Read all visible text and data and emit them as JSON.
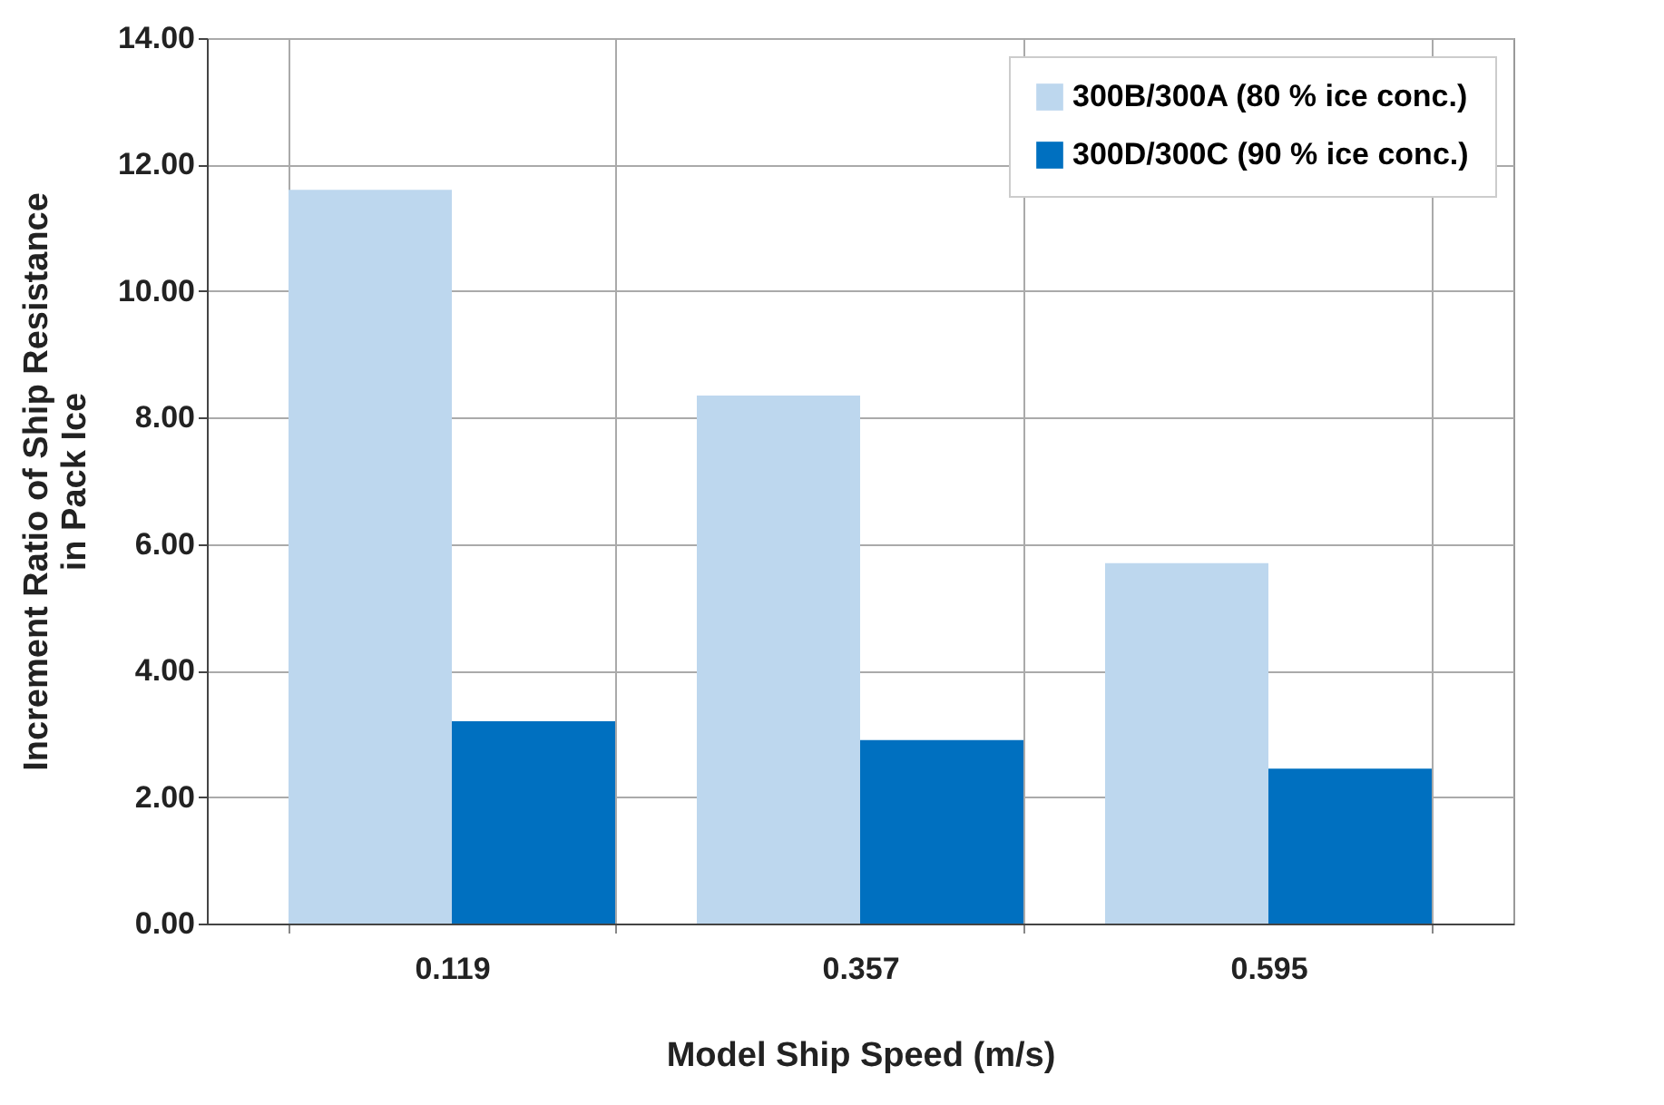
{
  "chart_data": {
    "type": "bar",
    "xlabel": "Model Ship Speed (m/s)",
    "ylabel": "Increment Ratio of Ship Resistance\nin Pack Ice",
    "categories": [
      "0.119",
      "0.357",
      "0.595"
    ],
    "series": [
      {
        "name": "300B/300A (80 % ice conc.)",
        "color": "#bdd7ee",
        "values": [
          11.6,
          8.35,
          5.7
        ]
      },
      {
        "name": "300D/300C (90 % ice conc.)",
        "color": "#0070c0",
        "values": [
          3.2,
          2.9,
          2.45
        ]
      }
    ],
    "ylim": [
      0,
      14
    ],
    "yticks": [
      {
        "value": 0,
        "label": "0.00"
      },
      {
        "value": 2,
        "label": "2.00"
      },
      {
        "value": 4,
        "label": "4.00"
      },
      {
        "value": 6,
        "label": "6.00"
      },
      {
        "value": 8,
        "label": "8.00"
      },
      {
        "value": 10,
        "label": "10.00"
      },
      {
        "value": 12,
        "label": "12.00"
      },
      {
        "value": 14,
        "label": "14.00"
      }
    ],
    "grid": true,
    "legend": "top right"
  }
}
